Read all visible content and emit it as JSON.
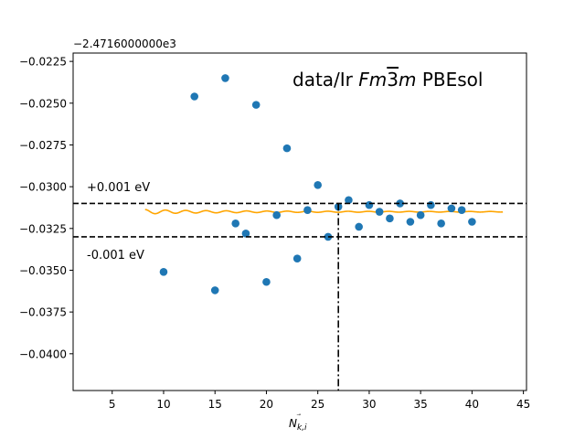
{
  "chart_data": {
    "type": "scatter",
    "title": "data/Ir Fm3m PBEsol",
    "title_parts": {
      "prefix": "data/Ir ",
      "spacegroup_a": "Fm",
      "spacegroup_bar": "3",
      "spacegroup_b": "m",
      "suffix": " PBEsol"
    },
    "offset_label": "−2.4716000000e3",
    "xlabel_main": "N",
    "xlabel_sub": "k,i",
    "xlabel_accent": "⃗",
    "ylabel": "",
    "xlim": [
      1.2,
      45.3
    ],
    "ylim": [
      -0.0422,
      -0.022
    ],
    "xticks": [
      5,
      10,
      15,
      20,
      25,
      30,
      35,
      40,
      45
    ],
    "yticks": [
      -0.0225,
      -0.025,
      -0.0275,
      -0.03,
      -0.0325,
      -0.035,
      -0.0375,
      -0.04
    ],
    "ytick_labels": [
      "−0.0225",
      "−0.0250",
      "−0.0275",
      "−0.0300",
      "−0.0325",
      "−0.0350",
      "−0.0375",
      "−0.0400"
    ],
    "points": {
      "color": "#1f77b4",
      "x": [
        10,
        13,
        15,
        16,
        17,
        18,
        19,
        20,
        21,
        22,
        23,
        24,
        25,
        26,
        27,
        28,
        29,
        30,
        31,
        32,
        33,
        34,
        35,
        36,
        37,
        38,
        39,
        40
      ],
      "y": [
        -0.0351,
        -0.0246,
        -0.0362,
        -0.0235,
        -0.0322,
        -0.0328,
        -0.0251,
        -0.0357,
        -0.0317,
        -0.0277,
        -0.0343,
        -0.0314,
        -0.0299,
        -0.033,
        -0.0312,
        -0.0308,
        -0.0324,
        -0.0311,
        -0.0315,
        -0.0319,
        -0.031,
        -0.0321,
        -0.0317,
        -0.0311,
        -0.0322,
        -0.0313,
        -0.0314,
        -0.0321
      ]
    },
    "fit": {
      "color": "#ffa500",
      "x_start": 8.2,
      "x_end": 43.0,
      "center": -0.0315,
      "amplitude_coef": 1.65e-05,
      "amplitude_power": 1.2,
      "period": 1.975,
      "phase_x0": 25.98
    },
    "band": {
      "upper": -0.031,
      "lower": -0.033,
      "upper_label": "+0.001 eV",
      "lower_label": "-0.001 eV",
      "converged_x": 27
    }
  }
}
